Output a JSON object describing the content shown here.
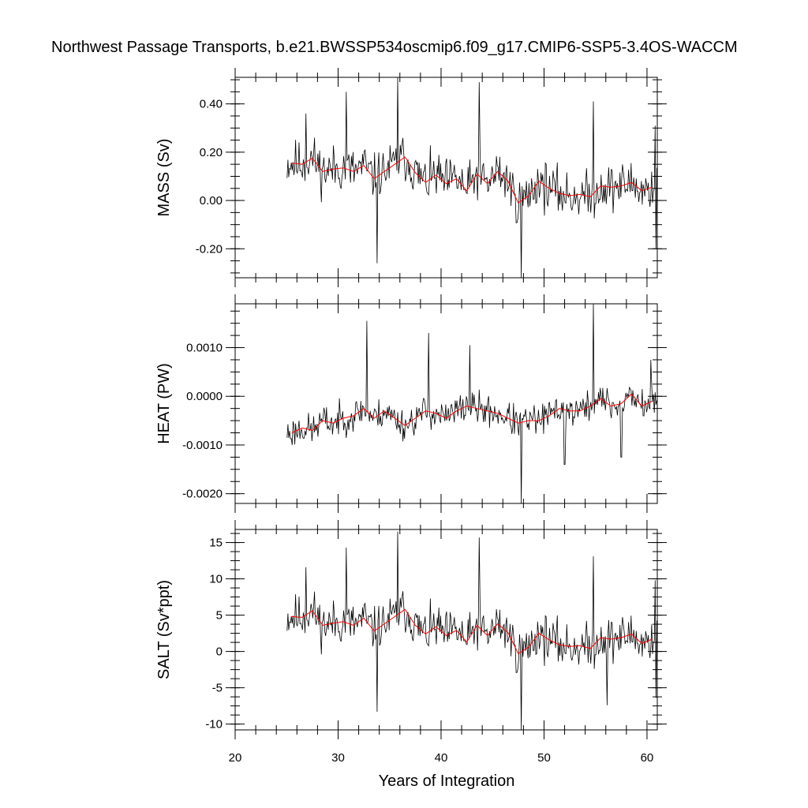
{
  "title": "Northwest Passage Transports, b.e21.BWSSP534oscmip6.f09_g17.CMIP6-SSP5-3.4OS-WACCM",
  "xlabel": "Years of Integration",
  "colors": {
    "monthly_line": "#000000",
    "annual_mean_line": "#ff0000",
    "background": "#ffffff"
  },
  "chart_data": [
    {
      "type": "line",
      "panel": "MASS",
      "ylabel": "MASS (Sv)",
      "xlim": [
        20,
        61
      ],
      "ylim": [
        -0.32,
        0.51
      ],
      "xticks": [
        20,
        30,
        40,
        50,
        60
      ],
      "xtick_labels": [
        "20",
        "30",
        "40",
        "50",
        "60"
      ],
      "yticks": [
        -0.2,
        0.0,
        0.2,
        0.4
      ],
      "ytick_labels": [
        "-0.20",
        "0.00",
        "0.20",
        "0.40"
      ],
      "grid": false,
      "annual_mean": {
        "x": [
          25.5,
          26.5,
          27.5,
          28.5,
          29.5,
          30.5,
          31.5,
          32.5,
          33.5,
          34.5,
          35.5,
          36.5,
          37.5,
          38.5,
          39.5,
          40.5,
          41.5,
          42.5,
          43.5,
          44.5,
          45.5,
          46.5,
          47.5,
          48.5,
          49.5,
          50.5,
          51.5,
          52.5,
          53.5,
          54.5,
          55.5,
          56.5,
          57.5,
          58.5,
          59.5,
          60.5
        ],
        "y": [
          0.155,
          0.15,
          0.175,
          0.12,
          0.13,
          0.135,
          0.12,
          0.145,
          0.09,
          0.12,
          0.15,
          0.18,
          0.115,
          0.075,
          0.105,
          0.07,
          0.09,
          0.04,
          0.11,
          0.07,
          0.12,
          0.08,
          -0.01,
          0.02,
          0.08,
          0.05,
          0.03,
          0.02,
          0.025,
          0.015,
          0.06,
          0.055,
          0.06,
          0.075,
          0.04,
          0.055
        ]
      },
      "spikes": [
        {
          "x": 26.9,
          "y": 0.36
        },
        {
          "x": 30.8,
          "y": 0.45
        },
        {
          "x": 33.8,
          "y": -0.26
        },
        {
          "x": 35.8,
          "y": 0.51
        },
        {
          "x": 43.7,
          "y": 0.49
        },
        {
          "x": 47.8,
          "y": -0.32
        },
        {
          "x": 54.8,
          "y": 0.41
        },
        {
          "x": 60.8,
          "y": 0.31
        },
        {
          "x": 60.9,
          "y": -0.2
        }
      ],
      "noise": 0.085,
      "seed": 11
    },
    {
      "type": "line",
      "panel": "HEAT",
      "ylabel": "HEAT (PW)",
      "xlim": [
        20,
        61
      ],
      "ylim": [
        -0.0022,
        0.0019
      ],
      "xticks": [
        20,
        30,
        40,
        50,
        60
      ],
      "xtick_labels": [
        "20",
        "30",
        "40",
        "50",
        "60"
      ],
      "yticks": [
        -0.002,
        -0.001,
        0.0,
        0.001
      ],
      "ytick_labels": [
        "-0.0020",
        "-0.0010",
        "0.0000",
        "0.0010"
      ],
      "grid": false,
      "annual_mean": {
        "x": [
          25.5,
          26.5,
          27.5,
          28.5,
          29.5,
          30.5,
          31.5,
          32.5,
          33.5,
          34.5,
          35.5,
          36.5,
          37.5,
          38.5,
          39.5,
          40.5,
          41.5,
          42.5,
          43.5,
          44.5,
          45.5,
          46.5,
          47.5,
          48.5,
          49.5,
          50.5,
          51.5,
          52.5,
          53.5,
          54.5,
          55.5,
          56.5,
          57.5,
          58.5,
          59.5,
          60.5
        ],
        "y": [
          -0.00075,
          -0.00065,
          -0.0007,
          -0.0005,
          -0.00055,
          -0.00045,
          -0.0004,
          -0.00025,
          -0.00045,
          -0.0003,
          -0.00045,
          -0.0006,
          -0.00045,
          -0.0003,
          -0.00035,
          -0.00045,
          -0.0003,
          -0.0002,
          -0.00025,
          -0.0003,
          -0.00035,
          -0.00045,
          -0.00055,
          -0.0005,
          -0.0005,
          -0.0004,
          -0.00025,
          -0.0003,
          -0.0003,
          -0.0002,
          -5e-05,
          -0.0002,
          -0.00015,
          5e-05,
          -0.0002,
          -0.0001
        ]
      },
      "spikes": [
        {
          "x": 32.8,
          "y": 0.00155
        },
        {
          "x": 38.8,
          "y": 0.0013
        },
        {
          "x": 42.8,
          "y": 0.00105
        },
        {
          "x": 47.8,
          "y": -0.0022
        },
        {
          "x": 54.8,
          "y": 0.0019
        },
        {
          "x": 52.0,
          "y": -0.0014
        },
        {
          "x": 57.5,
          "y": -0.00125
        },
        {
          "x": 60.4,
          "y": 0.00075
        }
      ],
      "noise": 0.00028,
      "seed": 23
    },
    {
      "type": "line",
      "panel": "SALT",
      "ylabel": "SALT (Sv*ppt)",
      "xlim": [
        20,
        61
      ],
      "ylim": [
        -10.8,
        16.8
      ],
      "xticks": [
        20,
        30,
        40,
        50,
        60
      ],
      "xtick_labels": [
        "20",
        "30",
        "40",
        "50",
        "60"
      ],
      "yticks": [
        -10,
        -5,
        0,
        5,
        10,
        15
      ],
      "ytick_labels": [
        "-10",
        "-5",
        "0",
        "5",
        "10",
        "15"
      ],
      "grid": false,
      "annual_mean": {
        "x": [
          25.5,
          26.5,
          27.5,
          28.5,
          29.5,
          30.5,
          31.5,
          32.5,
          33.5,
          34.5,
          35.5,
          36.5,
          37.5,
          38.5,
          39.5,
          40.5,
          41.5,
          42.5,
          43.5,
          44.5,
          45.5,
          46.5,
          47.5,
          48.5,
          49.5,
          50.5,
          51.5,
          52.5,
          53.5,
          54.5,
          55.5,
          56.5,
          57.5,
          58.5,
          59.5,
          60.5
        ],
        "y": [
          4.8,
          4.7,
          5.6,
          3.6,
          3.9,
          4.1,
          3.6,
          4.6,
          2.8,
          3.8,
          4.8,
          5.8,
          3.6,
          2.4,
          3.4,
          2.2,
          2.9,
          1.3,
          3.6,
          2.2,
          3.8,
          2.6,
          -0.3,
          0.6,
          2.5,
          1.6,
          0.9,
          0.7,
          0.8,
          0.4,
          1.9,
          1.7,
          1.9,
          2.4,
          1.1,
          1.7
        ]
      },
      "spikes": [
        {
          "x": 26.9,
          "y": 11.6
        },
        {
          "x": 30.8,
          "y": 14.3
        },
        {
          "x": 33.8,
          "y": -8.3
        },
        {
          "x": 35.8,
          "y": 16.5
        },
        {
          "x": 43.7,
          "y": 15.7
        },
        {
          "x": 47.8,
          "y": -10.8
        },
        {
          "x": 54.8,
          "y": 13.1
        },
        {
          "x": 56.1,
          "y": -7.4
        },
        {
          "x": 60.8,
          "y": 9.8
        },
        {
          "x": 60.9,
          "y": -6.4
        }
      ],
      "noise": 2.7,
      "seed": 11
    }
  ]
}
